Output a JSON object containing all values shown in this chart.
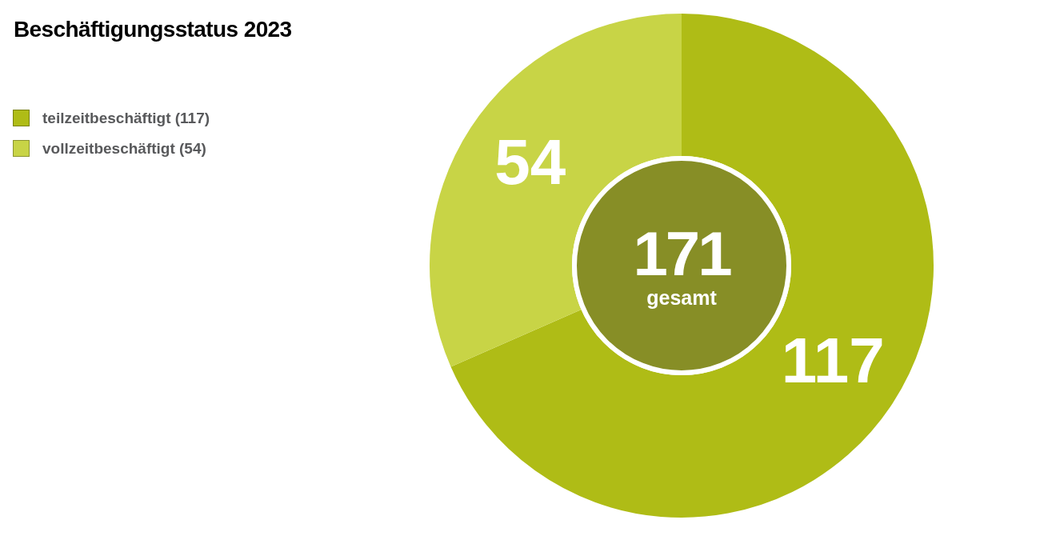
{
  "chart_data": {
    "type": "donut",
    "title": "Beschäftigungsstatus 2023",
    "categories": [
      "teilzeitbeschäftigt (117)",
      "vollzeitbeschäftigt (54)"
    ],
    "values": [
      117,
      54
    ],
    "colors": [
      "#afbc16",
      "#c8d446"
    ],
    "data_labels": true,
    "legend": "top left",
    "annotations": [
      "171",
      "gesamt"
    ]
  }
}
